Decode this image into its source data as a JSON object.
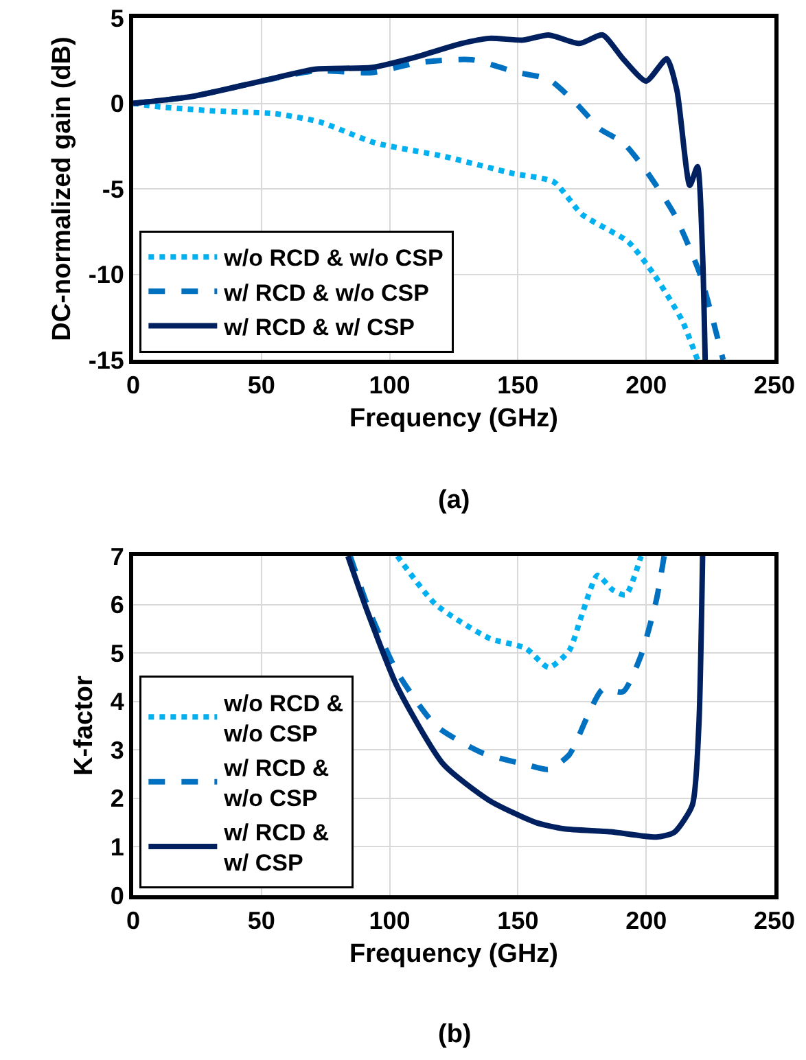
{
  "chart_data": [
    {
      "type": "line",
      "xlabel": "Frequency (GHz)",
      "ylabel": "DC-normalized gain (dB)",
      "annotations": [
        "(a)"
      ],
      "xlim": [
        0,
        250
      ],
      "xticks": [
        0,
        50,
        100,
        150,
        200,
        250
      ],
      "ylim": [
        -15,
        5
      ],
      "yticks": [
        -15,
        -10,
        -5,
        0,
        5
      ],
      "grid": true,
      "legend": "bottom left",
      "marker": "none",
      "series": [
        {
          "name": "w/o RCD & w/o CSP",
          "color": "#00b0f0",
          "line_style": "dotted",
          "x": [
            0,
            10,
            32,
            55,
            73,
            94,
            121,
            148,
            164,
            175,
            193,
            203,
            214,
            220
          ],
          "values": [
            0,
            -0.2,
            -0.45,
            -0.6,
            -1.1,
            -2.3,
            -3.1,
            -4.1,
            -4.6,
            -6.5,
            -8.1,
            -10,
            -12.7,
            -15
          ]
        },
        {
          "name": "w/ RCD & w/o CSP",
          "color": "#0070c0",
          "line_style": "dashed",
          "x": [
            0,
            23,
            50,
            71,
            93,
            112,
            132,
            150,
            162,
            173,
            182,
            191,
            200,
            211,
            221,
            230
          ],
          "values": [
            0,
            0.4,
            1.3,
            1.9,
            1.8,
            2.4,
            2.55,
            1.8,
            1.4,
            -0.05,
            -1.5,
            -2.3,
            -3.95,
            -6.5,
            -10,
            -15
          ]
        },
        {
          "name": "w/ RCD & w/ CSP",
          "color": "#002060",
          "line_style": "solid",
          "x": [
            0,
            23,
            50,
            71,
            93,
            110,
            128,
            139,
            152,
            162,
            174,
            183,
            191,
            200,
            208,
            212,
            217,
            220,
            222,
            223
          ],
          "values": [
            0,
            0.4,
            1.3,
            2.0,
            2.1,
            2.7,
            3.5,
            3.8,
            3.7,
            4.0,
            3.5,
            4.0,
            2.6,
            1.3,
            2.6,
            0.75,
            -4.8,
            -3.7,
            -8.9,
            -15
          ]
        }
      ]
    },
    {
      "type": "line",
      "xlabel": "Frequency (GHz)",
      "ylabel": "K-factor",
      "annotations": [
        "(b)"
      ],
      "xlim": [
        0,
        250
      ],
      "xticks": [
        0,
        50,
        100,
        150,
        200,
        250
      ],
      "ylim": [
        0,
        7
      ],
      "yticks": [
        0,
        1,
        2,
        3,
        4,
        5,
        6,
        7
      ],
      "grid": true,
      "legend": "bottom left",
      "marker": "none",
      "series": [
        {
          "name": "w/o RCD &\nw/o CSP",
          "color": "#00b0f0",
          "line_style": "dotted",
          "x": [
            103,
            118,
            139,
            153,
            162,
            170,
            175,
            181,
            187,
            192,
            198
          ],
          "values": [
            7,
            6.0,
            5.3,
            5.1,
            4.7,
            5.05,
            5.8,
            6.6,
            6.3,
            6.2,
            7
          ]
        },
        {
          "name": "w/ RCD &\nw/o CSP",
          "color": "#0070c0",
          "line_style": "dashed",
          "x": [
            84.6,
            92.6,
            103,
            118,
            136,
            153,
            162,
            170,
            178,
            183,
            191,
            198,
            204,
            207
          ],
          "values": [
            7,
            5.8,
            4.6,
            3.5,
            2.94,
            2.7,
            2.6,
            2.9,
            3.8,
            4.25,
            4.2,
            4.95,
            6.1,
            7
          ]
        },
        {
          "name": "w/ RCD &\nw/ CSP",
          "color": "#002060",
          "line_style": "solid",
          "x": [
            83.7,
            91,
            103,
            121,
            139,
            157,
            168,
            186,
            204,
            211,
            218,
            220.5,
            222
          ],
          "values": [
            7,
            5.9,
            4.3,
            2.7,
            1.95,
            1.5,
            1.37,
            1.31,
            1.2,
            1.3,
            1.86,
            3.45,
            7
          ]
        }
      ]
    }
  ]
}
